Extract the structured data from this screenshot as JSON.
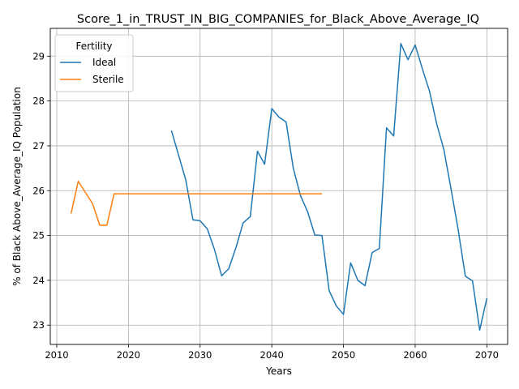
{
  "chart_data": {
    "type": "line",
    "title": "Score_1_in_TRUST_IN_BIG_COMPANIES_for_Black_Above_Average_IQ",
    "xlabel": "Years",
    "ylabel": "% of Black Above_Average_IQ Population",
    "xlim": [
      2009.1,
      2072.9
    ],
    "ylim": [
      22.57,
      29.62
    ],
    "xticks": [
      2010,
      2020,
      2030,
      2040,
      2050,
      2060,
      2070
    ],
    "yticks": [
      23,
      24,
      25,
      26,
      27,
      28,
      29
    ],
    "grid": true,
    "legend": {
      "title": "Fertility",
      "placement": "top-left"
    },
    "series": [
      {
        "name": "Ideal",
        "color": "#1f77b4",
        "x": [
          2026,
          2027,
          2028,
          2029,
          2030,
          2031,
          2032,
          2033,
          2034,
          2035,
          2036,
          2037,
          2038,
          2039,
          2040,
          2041,
          2042,
          2043,
          2044,
          2045,
          2046,
          2047,
          2048,
          2049,
          2050,
          2051,
          2052,
          2053,
          2054,
          2055,
          2056,
          2057,
          2058,
          2059,
          2060,
          2061,
          2062,
          2063,
          2064,
          2065,
          2066,
          2067,
          2068,
          2069,
          2070
        ],
        "y": [
          27.34,
          26.79,
          26.24,
          25.35,
          25.33,
          25.15,
          24.69,
          24.1,
          24.26,
          24.73,
          25.28,
          25.42,
          26.88,
          26.59,
          27.83,
          27.64,
          27.53,
          26.5,
          25.89,
          25.53,
          25.01,
          25.0,
          23.77,
          23.43,
          23.24,
          24.39,
          24.0,
          23.88,
          24.62,
          24.71,
          27.4,
          27.22,
          29.28,
          28.92,
          29.25,
          28.72,
          28.22,
          27.49,
          26.92,
          26.04,
          25.13,
          24.09,
          23.99,
          22.89,
          23.6
        ]
      },
      {
        "name": "Sterile",
        "color": "#ff7f0e",
        "x": [
          2012,
          2013,
          2014,
          2015,
          2016,
          2017,
          2018,
          2019,
          2020,
          2047
        ],
        "y": [
          25.49,
          26.21,
          25.96,
          25.71,
          25.23,
          25.23,
          25.93,
          25.93,
          25.93,
          25.93
        ]
      }
    ]
  }
}
